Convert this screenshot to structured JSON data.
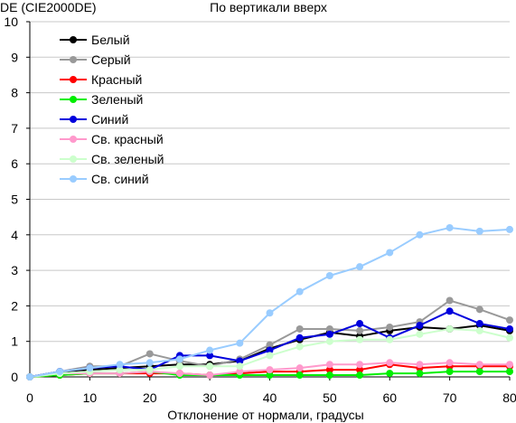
{
  "chart_data": {
    "type": "line",
    "title": "По вертикали вверх",
    "ylabel": "DE (CIE2000DE)",
    "xlabel": "Отклонение от нормали, градусы",
    "xlim": [
      0,
      80
    ],
    "ylim": [
      0,
      10
    ],
    "x_ticks": [
      0,
      10,
      20,
      30,
      40,
      50,
      60,
      70,
      80
    ],
    "y_ticks": [
      0,
      1,
      2,
      3,
      4,
      5,
      6,
      7,
      8,
      9,
      10
    ],
    "grid": "horizontal",
    "legend_position": "top-left",
    "x": [
      0,
      5,
      10,
      15,
      20,
      25,
      30,
      35,
      40,
      45,
      50,
      55,
      60,
      65,
      70,
      75,
      80
    ],
    "series": [
      {
        "name": "Белый",
        "color": "#000000",
        "values": [
          0,
          0.15,
          0.2,
          0.25,
          0.3,
          0.35,
          0.35,
          0.45,
          0.8,
          1.05,
          1.25,
          1.15,
          1.3,
          1.4,
          1.35,
          1.45,
          1.3
        ]
      },
      {
        "name": "Серый",
        "color": "#999999",
        "values": [
          0,
          0.15,
          0.3,
          0.3,
          0.65,
          0.45,
          0.3,
          0.5,
          0.9,
          1.35,
          1.35,
          1.3,
          1.4,
          1.55,
          2.15,
          1.9,
          1.6
        ]
      },
      {
        "name": "Красный",
        "color": "#ff0000",
        "values": [
          0,
          0.05,
          0.1,
          0.1,
          0.1,
          0.1,
          0.05,
          0.1,
          0.15,
          0.15,
          0.2,
          0.2,
          0.35,
          0.25,
          0.3,
          0.3,
          0.3
        ]
      },
      {
        "name": "Зеленый",
        "color": "#00ee00",
        "values": [
          0,
          0.05,
          0.1,
          0.1,
          0.15,
          0.05,
          0.05,
          0.05,
          0.05,
          0.05,
          0.05,
          0.05,
          0.1,
          0.1,
          0.15,
          0.15,
          0.15
        ]
      },
      {
        "name": "Синий",
        "color": "#0000dd",
        "values": [
          0,
          0.15,
          0.25,
          0.3,
          0.2,
          0.6,
          0.6,
          0.45,
          0.75,
          1.1,
          1.2,
          1.5,
          1.1,
          1.45,
          1.85,
          1.5,
          1.35
        ]
      },
      {
        "name": "Св. красный",
        "color": "#ff99cc",
        "values": [
          0,
          0.1,
          0.1,
          0.1,
          0.15,
          0.1,
          0.05,
          0.15,
          0.2,
          0.25,
          0.35,
          0.35,
          0.4,
          0.35,
          0.4,
          0.35,
          0.35
        ]
      },
      {
        "name": "Св. зеленый",
        "color": "#ccffcc",
        "values": [
          0,
          0.1,
          0.15,
          0.2,
          0.2,
          0.3,
          0.3,
          0.3,
          0.6,
          0.85,
          1.0,
          1.05,
          1.05,
          1.2,
          1.35,
          1.3,
          1.1
        ]
      },
      {
        "name": "Св. синий",
        "color": "#99ccff",
        "values": [
          0,
          0.15,
          0.25,
          0.35,
          0.4,
          0.5,
          0.75,
          0.95,
          1.8,
          2.4,
          2.85,
          3.1,
          3.5,
          4.0,
          4.2,
          4.1,
          4.15
        ]
      }
    ]
  }
}
